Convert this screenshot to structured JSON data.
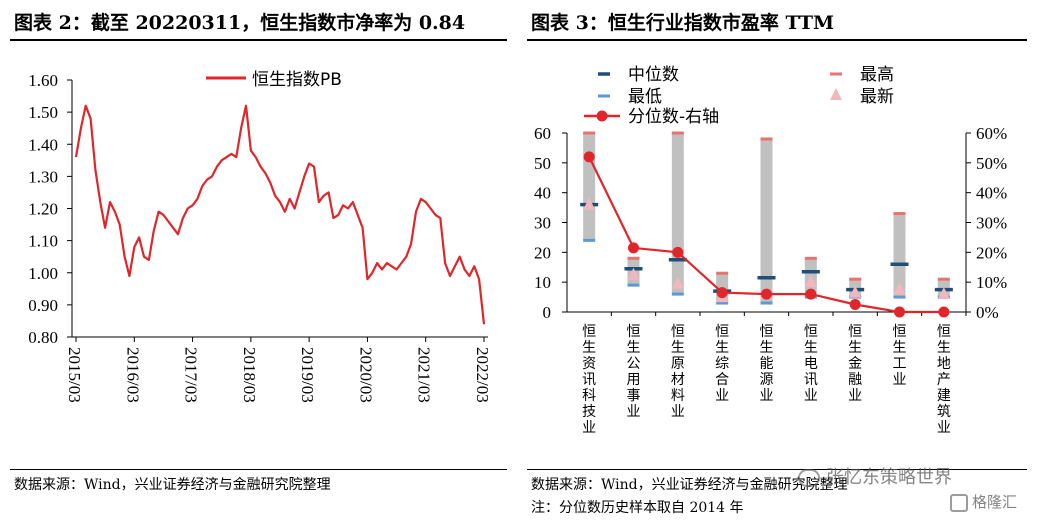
{
  "left": {
    "title": "图表 2：截至 20220311，恒生指数市净率为 0.84",
    "source": "数据来源：Wind，兴业证券经济与金融研究院整理"
  },
  "right": {
    "title": "图表 3：恒生行业指数市盈率 TTM",
    "source": "数据来源：Wind，兴业证券经济与金融研究院整理",
    "note": "注：分位数历史样本取自 2014 年"
  },
  "watermark": {
    "wechat": "张忆东策略世界",
    "brand": "格隆汇"
  },
  "colors": {
    "red": "#e0262b",
    "gray": "#c0c0c0",
    "navy": "#1f4e79",
    "lightblue": "#5b9bd5",
    "salmon": "#e8736c",
    "pink": "#f4b6be"
  },
  "chart_data": [
    {
      "type": "line",
      "series": [
        {
          "name": "恒生指数PB",
          "color": "#e0262b"
        }
      ],
      "y_ticks": [
        "1.60",
        "1.50",
        "1.40",
        "1.30",
        "1.20",
        "1.10",
        "1.00",
        "0.90",
        "0.80"
      ],
      "ylim": [
        0.8,
        1.6
      ],
      "x_ticks": [
        "2015/03",
        "2016/03",
        "2017/03",
        "2018/03",
        "2019/03",
        "2020/03",
        "2021/03",
        "2022/03"
      ],
      "x": [
        "2015/03",
        "2015/04",
        "2015/05",
        "2015/06",
        "2015/07",
        "2015/08",
        "2015/09",
        "2015/10",
        "2015/11",
        "2015/12",
        "2016/01",
        "2016/02",
        "2016/03",
        "2016/04",
        "2016/05",
        "2016/06",
        "2016/07",
        "2016/08",
        "2016/09",
        "2016/10",
        "2016/11",
        "2016/12",
        "2017/01",
        "2017/02",
        "2017/03",
        "2017/04",
        "2017/05",
        "2017/06",
        "2017/07",
        "2017/08",
        "2017/09",
        "2017/10",
        "2017/11",
        "2017/12",
        "2018/01",
        "2018/02",
        "2018/03",
        "2018/04",
        "2018/05",
        "2018/06",
        "2018/07",
        "2018/08",
        "2018/09",
        "2018/10",
        "2018/11",
        "2018/12",
        "2019/01",
        "2019/02",
        "2019/03",
        "2019/04",
        "2019/05",
        "2019/06",
        "2019/07",
        "2019/08",
        "2019/09",
        "2019/10",
        "2019/11",
        "2019/12",
        "2020/01",
        "2020/02",
        "2020/03",
        "2020/04",
        "2020/05",
        "2020/06",
        "2020/07",
        "2020/08",
        "2020/09",
        "2020/10",
        "2020/11",
        "2020/12",
        "2021/01",
        "2021/02",
        "2021/03",
        "2021/04",
        "2021/05",
        "2021/06",
        "2021/07",
        "2021/08",
        "2021/09",
        "2021/10",
        "2021/11",
        "2021/12",
        "2022/01",
        "2022/02",
        "2022/03"
      ],
      "y": [
        1.36,
        1.45,
        1.52,
        1.48,
        1.32,
        1.22,
        1.14,
        1.22,
        1.19,
        1.15,
        1.05,
        0.99,
        1.08,
        1.11,
        1.05,
        1.04,
        1.13,
        1.19,
        1.18,
        1.16,
        1.14,
        1.12,
        1.17,
        1.2,
        1.21,
        1.23,
        1.27,
        1.29,
        1.3,
        1.33,
        1.35,
        1.36,
        1.37,
        1.36,
        1.45,
        1.52,
        1.38,
        1.36,
        1.33,
        1.31,
        1.28,
        1.24,
        1.22,
        1.19,
        1.23,
        1.2,
        1.25,
        1.3,
        1.34,
        1.33,
        1.22,
        1.24,
        1.25,
        1.17,
        1.18,
        1.21,
        1.2,
        1.22,
        1.18,
        1.14,
        0.98,
        1.0,
        1.03,
        1.01,
        1.03,
        1.02,
        1.01,
        1.03,
        1.05,
        1.09,
        1.19,
        1.23,
        1.22,
        1.2,
        1.18,
        1.17,
        1.03,
        0.99,
        1.02,
        1.05,
        1.01,
        0.99,
        1.02,
        0.98,
        0.84
      ]
    },
    {
      "type": "bar",
      "categories": [
        "恒生资讯科技业",
        "恒生公用事业",
        "恒生原材料业",
        "恒生综合业",
        "恒生能源业",
        "恒生电讯业",
        "恒生金融业",
        "恒生工业",
        "恒生地产建筑业"
      ],
      "legend": {
        "median": "中位数",
        "low": "最低",
        "high": "最高",
        "latest": "最新",
        "pct": "分位数-右轴"
      },
      "ylim_left": [
        0,
        60
      ],
      "y_ticks_left": [
        "60",
        "50",
        "40",
        "30",
        "20",
        "10",
        "0"
      ],
      "ylim_right": [
        0,
        60
      ],
      "y_ticks_right": [
        "60%",
        "50%",
        "40%",
        "30%",
        "20%",
        "10%",
        "0%"
      ],
      "low": [
        24,
        9,
        6,
        3,
        3,
        5,
        5,
        5,
        5
      ],
      "high": [
        60,
        18,
        60,
        13,
        58,
        18,
        11,
        33,
        11
      ],
      "median": [
        36,
        14.5,
        17.5,
        7,
        11.5,
        13.5,
        7.5,
        16,
        7.5
      ],
      "latest": [
        36,
        12.5,
        9.5,
        5,
        6,
        10,
        6.5,
        7.5,
        6
      ],
      "percentile": [
        52,
        21.5,
        20,
        6.5,
        6,
        6,
        2.5,
        0,
        0
      ]
    }
  ]
}
